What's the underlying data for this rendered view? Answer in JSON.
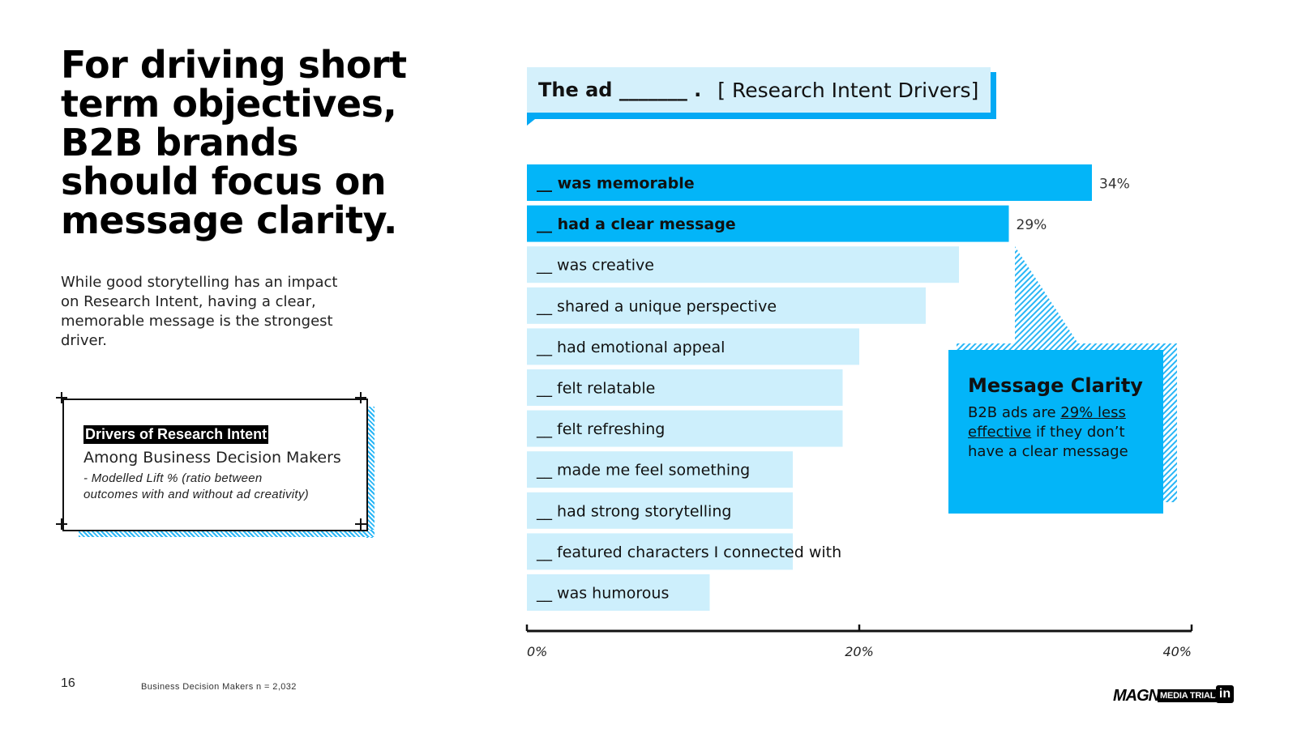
{
  "headline": "For driving short term objectives, B2B brands should focus on message clarity.",
  "subtext": "While good storytelling has an impact on Research Intent, having a clear, memorable message is the strongest driver.",
  "key_box": {
    "title": "Drivers of Research Intent",
    "subtitle": "Among Business Decision Makers",
    "note": "- Modelled Lift % (ratio between outcomes with and without ad creativity)"
  },
  "banner": {
    "lead": "The ad _______ .",
    "tag": "[ Research Intent Drivers]"
  },
  "callout": {
    "title": "Message Clarity",
    "text_before": "B2B ads are ",
    "highlight": "29% less effective",
    "text_after": " if they don’t have a clear message"
  },
  "page_number": "16",
  "footnote": "Business Decision Makers n = 2,032",
  "logos": {
    "magna": "MAGNA",
    "media_trials": "MEDIA TRIALS",
    "linkedin": "in"
  },
  "colors": {
    "highlight_bar": "#03b5f8",
    "regular_bar": "#cdeffc",
    "accent": "#03a9f4"
  },
  "chart_data": {
    "type": "bar",
    "orientation": "horizontal",
    "categories": [
      "__ was memorable",
      "__ had a clear message",
      "__ was creative",
      "__ shared a unique perspective",
      "__ had emotional appeal",
      "__ felt relatable",
      "__ felt refreshing",
      "__ made me feel something",
      "__ had strong storytelling",
      "__ featured characters I connected with",
      "__ was humorous"
    ],
    "values": [
      34,
      29,
      26,
      24,
      20,
      19,
      19,
      16,
      16,
      16,
      11
    ],
    "value_labels": [
      "34%",
      "29%",
      "",
      "",
      "",
      "",
      "",
      "",
      "",
      "",
      ""
    ],
    "highlighted": [
      true,
      true,
      false,
      false,
      false,
      false,
      false,
      false,
      false,
      false,
      false
    ],
    "xlim": [
      0,
      40
    ],
    "ticks": [
      0,
      20,
      40
    ],
    "tick_labels": [
      "0%",
      "20%",
      "40%"
    ],
    "grid": false,
    "legend": "none"
  }
}
